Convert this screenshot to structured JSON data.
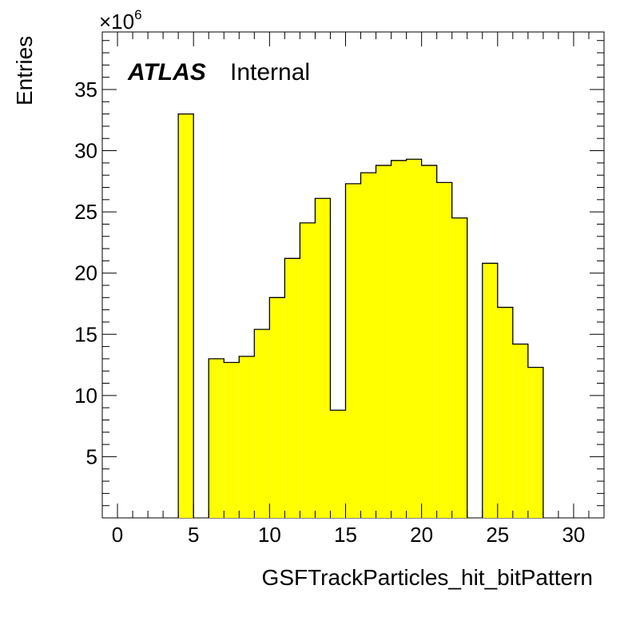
{
  "chart_data": {
    "type": "histogram",
    "xlabel": "GSFTrackParticles_hit_bitPattern",
    "ylabel": "Entries",
    "y_multiplier_base": "×10",
    "y_multiplier_exp": "6",
    "label_bold": "ATLAS",
    "label_text": "Internal",
    "xlim": [
      -1,
      32
    ],
    "ylim": [
      0,
      39.7
    ],
    "bin_width": 1,
    "bins": [
      {
        "x0": 4,
        "value": 33.0
      },
      {
        "x0": 6,
        "value": 13.0
      },
      {
        "x0": 7,
        "value": 12.7
      },
      {
        "x0": 8,
        "value": 13.2
      },
      {
        "x0": 9,
        "value": 15.4
      },
      {
        "x0": 10,
        "value": 18.0
      },
      {
        "x0": 11,
        "value": 21.2
      },
      {
        "x0": 12,
        "value": 24.1
      },
      {
        "x0": 13,
        "value": 26.1
      },
      {
        "x0": 14,
        "value": 8.8
      },
      {
        "x0": 15,
        "value": 27.3
      },
      {
        "x0": 16,
        "value": 28.2
      },
      {
        "x0": 17,
        "value": 28.8
      },
      {
        "x0": 18,
        "value": 29.2
      },
      {
        "x0": 19,
        "value": 29.3
      },
      {
        "x0": 20,
        "value": 28.8
      },
      {
        "x0": 21,
        "value": 27.4
      },
      {
        "x0": 22,
        "value": 24.5
      },
      {
        "x0": 24,
        "value": 20.8
      },
      {
        "x0": 25,
        "value": 17.2
      },
      {
        "x0": 26,
        "value": 14.2
      },
      {
        "x0": 27,
        "value": 12.3
      }
    ],
    "x_ticks": [
      0,
      5,
      10,
      15,
      20,
      25,
      30
    ],
    "x_tick_labels": [
      "0",
      "5",
      "10",
      "15",
      "20",
      "25",
      "30"
    ],
    "y_ticks": [
      5,
      10,
      15,
      20,
      25,
      30,
      35
    ],
    "y_tick_labels": [
      "5",
      "10",
      "15",
      "20",
      "25",
      "30",
      "35"
    ],
    "fill_color": "#ffff00",
    "line_color": "#000000"
  }
}
